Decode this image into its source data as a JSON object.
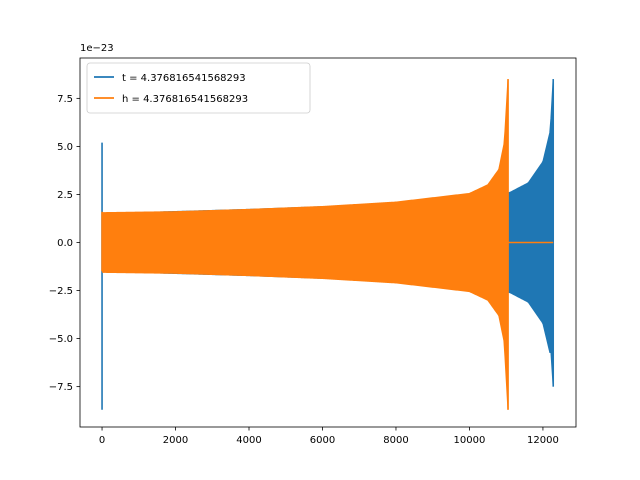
{
  "chart_data": {
    "type": "line",
    "title": "",
    "xlabel": "",
    "ylabel": "",
    "y_offset_label": "1e−23",
    "xlim": [
      -600,
      12900
    ],
    "ylim": [
      -9.6,
      9.6
    ],
    "xticks": [
      0,
      2000,
      4000,
      6000,
      8000,
      10000,
      12000
    ],
    "xtick_labels": [
      "0",
      "2000",
      "4000",
      "6000",
      "8000",
      "10000",
      "12000"
    ],
    "yticks": [
      -7.5,
      -5.0,
      -2.5,
      0.0,
      2.5,
      5.0,
      7.5
    ],
    "ytick_labels": [
      "−7.5",
      "−5.0",
      "−2.5",
      "0.0",
      "2.5",
      "5.0",
      "7.5"
    ],
    "grid": false,
    "legend_position": "upper-left",
    "series": [
      {
        "name": "t = 4.376816541568293",
        "color": "#1f77b4",
        "style": "oscillating-envelope",
        "x_start": 0,
        "x_end": 12280,
        "start_spike": [
          -8.7,
          5.2
        ],
        "envelope": [
          {
            "x": 40,
            "y": 1.5
          },
          {
            "x": 4000,
            "y": 1.72
          },
          {
            "x": 8000,
            "y": 2.0
          },
          {
            "x": 11100,
            "y": 2.6
          },
          {
            "x": 11600,
            "y": 3.1
          },
          {
            "x": 12000,
            "y": 4.2
          },
          {
            "x": 12200,
            "y": 5.8
          },
          {
            "x": 12280,
            "y": 8.5
          }
        ],
        "min_at_end": -7.5
      },
      {
        "name": "h = 4.376816541568293",
        "color": "#ff7f0e",
        "style": "oscillating-envelope",
        "x_start": 0,
        "x_end": 11050,
        "tail_zero_until": 12280,
        "start_spike": [
          -1.5,
          1.6
        ],
        "envelope": [
          {
            "x": 20,
            "y": 1.55
          },
          {
            "x": 2000,
            "y": 1.6
          },
          {
            "x": 4000,
            "y": 1.72
          },
          {
            "x": 6000,
            "y": 1.87
          },
          {
            "x": 8000,
            "y": 2.1
          },
          {
            "x": 10000,
            "y": 2.55
          },
          {
            "x": 10500,
            "y": 3.0
          },
          {
            "x": 10800,
            "y": 3.8
          },
          {
            "x": 10950,
            "y": 5.2
          },
          {
            "x": 11050,
            "y": 8.5
          }
        ],
        "min_at_end": -8.7
      }
    ]
  }
}
